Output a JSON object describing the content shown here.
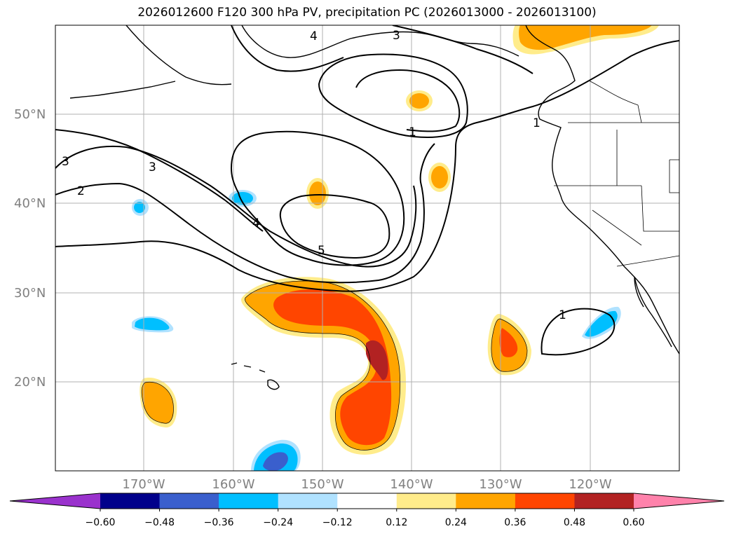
{
  "title": "2026012600 F120 300 hPa PV, precipitation PC (2026013000 - 2026013100)",
  "map": {
    "latitude_labels": [
      "50°N",
      "40°N",
      "30°N",
      "20°N"
    ],
    "longitude_labels": [
      "170°W",
      "160°W",
      "150°W",
      "140°W",
      "130°W",
      "120°W"
    ],
    "pv_contour_labels": [
      "4",
      "3",
      "3",
      "2",
      "3",
      "1",
      "1",
      "4",
      "5",
      "1"
    ],
    "gridline_color": "#b0b0b0"
  },
  "colorbar": {
    "tick_labels": [
      "−0.60",
      "−0.48",
      "−0.36",
      "−0.24",
      "−0.12",
      "0.12",
      "0.24",
      "0.36",
      "0.48",
      "0.60"
    ],
    "colors": [
      "#9a32cd",
      "#00008b",
      "#3a5fcd",
      "#00bfff",
      "#b0e2ff",
      "#ffffff",
      "#ffec8b",
      "#ffa500",
      "#ff4500",
      "#b22222",
      "#ff82ab"
    ]
  }
}
